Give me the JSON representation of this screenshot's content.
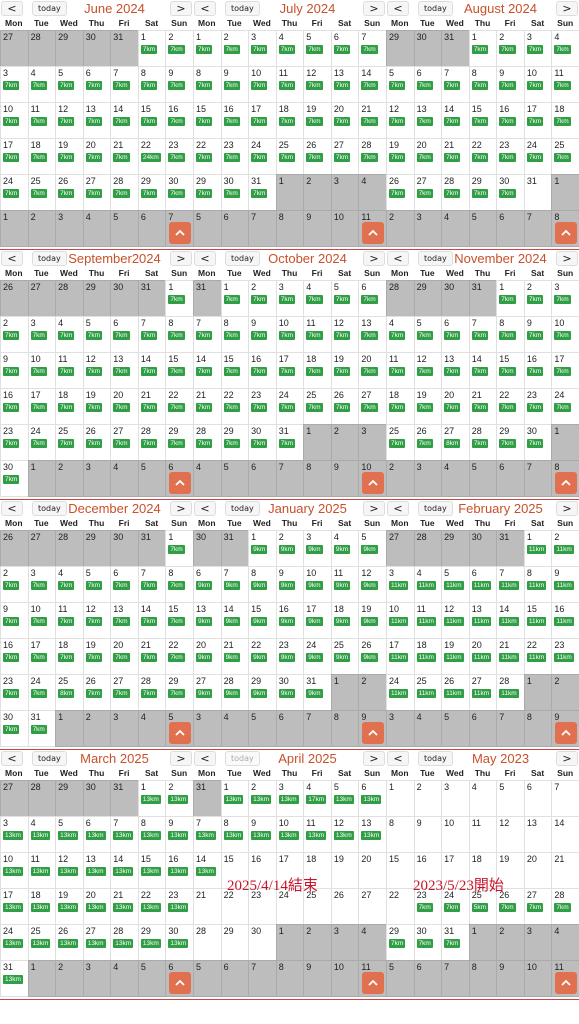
{
  "day_headers": [
    "Mon",
    "Tue",
    "Wed",
    "Thu",
    "Fri",
    "Sat",
    "Sun"
  ],
  "today_label": "today",
  "prev_icon": "<",
  "next_icon": ">",
  "scroll_top_icon": "^",
  "months": [
    {
      "title": "June 2024",
      "offset": 5,
      "days": 30,
      "distance": "7km",
      "active": [
        1,
        30
      ],
      "extra": {
        "22": "24km"
      },
      "today_disabled": false
    },
    {
      "title": "July 2024",
      "offset": 0,
      "days": 31,
      "distance": "7km",
      "active": [
        1,
        31
      ],
      "extra": {},
      "today_disabled": false
    },
    {
      "title": "August 2024",
      "offset": 3,
      "days": 31,
      "distance": "7km",
      "active": [
        1,
        30
      ],
      "extra": {},
      "today_disabled": false
    },
    {
      "title": "September2024",
      "offset": 6,
      "days": 30,
      "distance": "7km",
      "active": [
        1,
        30
      ],
      "extra": {},
      "today_disabled": false
    },
    {
      "title": "October 2024",
      "offset": 1,
      "days": 31,
      "distance": "7km",
      "active": [
        1,
        31
      ],
      "extra": {},
      "today_disabled": false
    },
    {
      "title": "November 2024",
      "offset": 4,
      "days": 30,
      "distance": "7km",
      "active": [
        1,
        30
      ],
      "extra": {
        "27": "8km"
      },
      "today_disabled": false
    },
    {
      "title": "December 2024",
      "offset": 6,
      "days": 31,
      "distance": "7km",
      "active": [
        1,
        31
      ],
      "extra": {
        "25": "8km"
      },
      "today_disabled": false
    },
    {
      "title": "January 2025",
      "offset": 2,
      "days": 31,
      "distance": "9km",
      "active": [
        1,
        31
      ],
      "extra": {},
      "today_disabled": false
    },
    {
      "title": "February 2025",
      "offset": 5,
      "days": 28,
      "distance": "11km",
      "active": [
        1,
        28
      ],
      "extra": {},
      "today_disabled": false
    },
    {
      "title": "March 2025",
      "offset": 5,
      "days": 31,
      "distance": "13km",
      "active": [
        1,
        31
      ],
      "extra": {},
      "today_disabled": false
    },
    {
      "title": "April 2025",
      "offset": 1,
      "days": 30,
      "distance": "13km",
      "active": [
        1,
        14
      ],
      "extra": {
        "4": "17km"
      },
      "today_disabled": true
    },
    {
      "title": "May 2023",
      "offset": 0,
      "days": 31,
      "distance": "7km",
      "active": [
        23,
        31
      ],
      "extra": {
        "25": "5km"
      },
      "today_disabled": false
    }
  ],
  "notes": {
    "end": "2025/4/14結束",
    "start": "2023/5/23開始"
  }
}
